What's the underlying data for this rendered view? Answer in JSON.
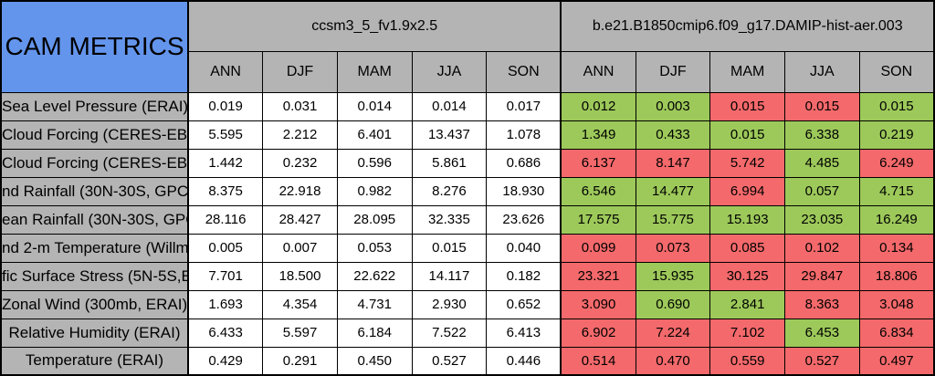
{
  "colors": {
    "good_green": "#9DC95A",
    "bad_red": "#F4696B",
    "header_gray": "#B4B4B4",
    "corner_blue": "#6495ED",
    "cell_white": "#FFFFFF",
    "border_black": "#000000"
  },
  "chart_data": {
    "type": "table",
    "title": "CAM METRICS",
    "column_groups": [
      {
        "label": "ccsm3_5_fv1.9x2.5"
      },
      {
        "label": "b.e21.B1850cmip6.f09_g17.DAMIP-hist-aer.003"
      }
    ],
    "season_columns": [
      "ANN",
      "DJF",
      "MAM",
      "JJA",
      "SON"
    ],
    "rows": [
      {
        "metric": "Sea Level Pressure (ERAI)",
        "group1_values": [
          "0.019",
          "0.031",
          "0.014",
          "0.014",
          "0.017"
        ],
        "group2_values": [
          "0.012",
          "0.003",
          "0.015",
          "0.015",
          "0.015"
        ],
        "group2_status": [
          "good",
          "good",
          "bad",
          "bad",
          "good"
        ]
      },
      {
        "metric": "Cloud Forcing (CERES-EB",
        "group1_values": [
          "5.595",
          "2.212",
          "6.401",
          "13.437",
          "1.078"
        ],
        "group2_values": [
          "1.349",
          "0.433",
          "0.015",
          "6.338",
          "0.219"
        ],
        "group2_status": [
          "good",
          "good",
          "good",
          "good",
          "good"
        ]
      },
      {
        "metric": "Cloud Forcing (CERES-EB",
        "group1_values": [
          "1.442",
          "0.232",
          "0.596",
          "5.861",
          "0.686"
        ],
        "group2_values": [
          "6.137",
          "8.147",
          "5.742",
          "4.485",
          "6.249"
        ],
        "group2_status": [
          "bad",
          "bad",
          "bad",
          "good",
          "bad"
        ]
      },
      {
        "metric": "nd Rainfall (30N-30S, GPC",
        "group1_values": [
          "8.375",
          "22.918",
          "0.982",
          "8.276",
          "18.930"
        ],
        "group2_values": [
          "6.546",
          "14.477",
          "6.994",
          "0.057",
          "4.715"
        ],
        "group2_status": [
          "good",
          "good",
          "bad",
          "good",
          "good"
        ]
      },
      {
        "metric": "ean Rainfall (30N-30S, GPC",
        "group1_values": [
          "28.116",
          "28.427",
          "28.095",
          "32.335",
          "23.626"
        ],
        "group2_values": [
          "17.575",
          "15.775",
          "15.193",
          "23.035",
          "16.249"
        ],
        "group2_status": [
          "good",
          "good",
          "good",
          "good",
          "good"
        ]
      },
      {
        "metric": "nd 2-m Temperature (Willmo",
        "group1_values": [
          "0.005",
          "0.007",
          "0.053",
          "0.015",
          "0.040"
        ],
        "group2_values": [
          "0.099",
          "0.073",
          "0.085",
          "0.102",
          "0.134"
        ],
        "group2_status": [
          "bad",
          "bad",
          "bad",
          "bad",
          "bad"
        ]
      },
      {
        "metric": "fic Surface Stress (5N-5S,E",
        "group1_values": [
          "7.701",
          "18.500",
          "22.622",
          "14.117",
          "0.182"
        ],
        "group2_values": [
          "23.321",
          "15.935",
          "30.125",
          "29.847",
          "18.806"
        ],
        "group2_status": [
          "bad",
          "good",
          "bad",
          "bad",
          "bad"
        ]
      },
      {
        "metric": "Zonal Wind (300mb, ERAI)",
        "group1_values": [
          "1.693",
          "4.354",
          "4.731",
          "2.930",
          "0.652"
        ],
        "group2_values": [
          "3.090",
          "0.690",
          "2.841",
          "8.363",
          "3.048"
        ],
        "group2_status": [
          "bad",
          "good",
          "good",
          "bad",
          "bad"
        ]
      },
      {
        "metric": "Relative Humidity (ERAI)",
        "group1_values": [
          "6.433",
          "5.597",
          "6.184",
          "7.522",
          "6.413"
        ],
        "group2_values": [
          "6.902",
          "7.224",
          "7.102",
          "6.453",
          "6.834"
        ],
        "group2_status": [
          "bad",
          "bad",
          "bad",
          "good",
          "bad"
        ]
      },
      {
        "metric": "Temperature (ERAI)",
        "group1_values": [
          "0.429",
          "0.291",
          "0.450",
          "0.527",
          "0.446"
        ],
        "group2_values": [
          "0.514",
          "0.470",
          "0.559",
          "0.527",
          "0.497"
        ],
        "group2_status": [
          "bad",
          "bad",
          "bad",
          "bad",
          "bad"
        ]
      }
    ]
  }
}
